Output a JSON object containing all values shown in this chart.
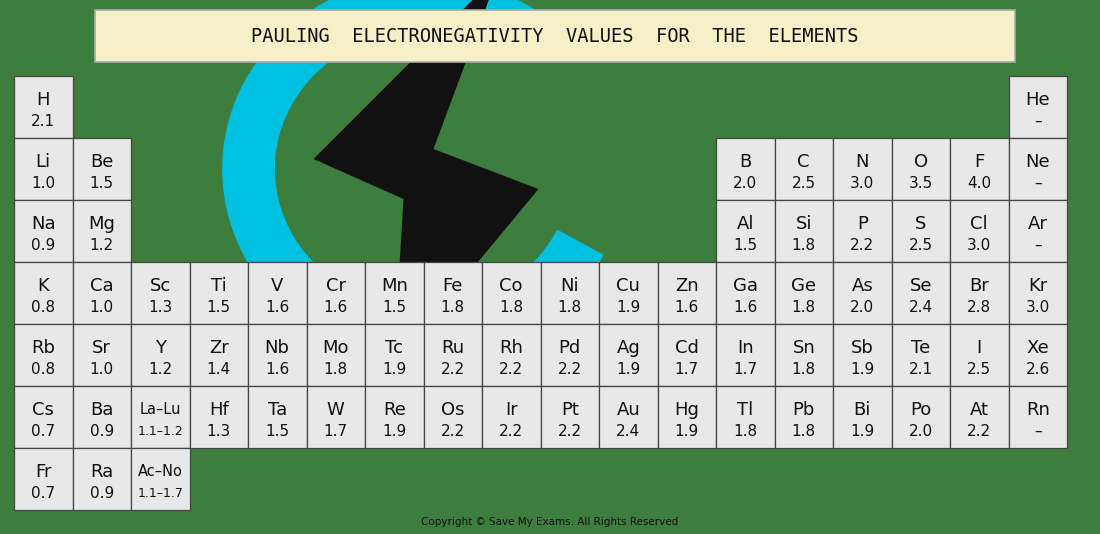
{
  "title": "PAULING  ELECTRONEGATIVITY  VALUES  FOR  THE  ELEMENTS",
  "title_bg": "#f5f0c8",
  "bg_color": "#3d7d3d",
  "cell_bg": "#e8e8e8",
  "cell_border": "#444444",
  "copyright": "Copyright © Save My Exams. All Rights Reserved",
  "cyan_color": "#00c0e0",
  "black_color": "#111111",
  "elements": [
    {
      "symbol": "H",
      "value": "2.1",
      "col": 0,
      "row": 0
    },
    {
      "symbol": "He",
      "value": "–",
      "col": 17,
      "row": 0
    },
    {
      "symbol": "Li",
      "value": "1.0",
      "col": 0,
      "row": 1
    },
    {
      "symbol": "Be",
      "value": "1.5",
      "col": 1,
      "row": 1
    },
    {
      "symbol": "B",
      "value": "2.0",
      "col": 12,
      "row": 1
    },
    {
      "symbol": "C",
      "value": "2.5",
      "col": 13,
      "row": 1
    },
    {
      "symbol": "N",
      "value": "3.0",
      "col": 14,
      "row": 1
    },
    {
      "symbol": "O",
      "value": "3.5",
      "col": 15,
      "row": 1
    },
    {
      "symbol": "F",
      "value": "4.0",
      "col": 16,
      "row": 1
    },
    {
      "symbol": "Ne",
      "value": "–",
      "col": 17,
      "row": 1
    },
    {
      "symbol": "Na",
      "value": "0.9",
      "col": 0,
      "row": 2
    },
    {
      "symbol": "Mg",
      "value": "1.2",
      "col": 1,
      "row": 2
    },
    {
      "symbol": "Al",
      "value": "1.5",
      "col": 12,
      "row": 2
    },
    {
      "symbol": "Si",
      "value": "1.8",
      "col": 13,
      "row": 2
    },
    {
      "symbol": "P",
      "value": "2.2",
      "col": 14,
      "row": 2
    },
    {
      "symbol": "S",
      "value": "2.5",
      "col": 15,
      "row": 2
    },
    {
      "symbol": "Cl",
      "value": "3.0",
      "col": 16,
      "row": 2
    },
    {
      "symbol": "Ar",
      "value": "–",
      "col": 17,
      "row": 2
    },
    {
      "symbol": "K",
      "value": "0.8",
      "col": 0,
      "row": 3
    },
    {
      "symbol": "Ca",
      "value": "1.0",
      "col": 1,
      "row": 3
    },
    {
      "symbol": "Sc",
      "value": "1.3",
      "col": 2,
      "row": 3
    },
    {
      "symbol": "Ti",
      "value": "1.5",
      "col": 3,
      "row": 3
    },
    {
      "symbol": "V",
      "value": "1.6",
      "col": 4,
      "row": 3
    },
    {
      "symbol": "Cr",
      "value": "1.6",
      "col": 5,
      "row": 3
    },
    {
      "symbol": "Mn",
      "value": "1.5",
      "col": 6,
      "row": 3
    },
    {
      "symbol": "Fe",
      "value": "1.8",
      "col": 7,
      "row": 3
    },
    {
      "symbol": "Co",
      "value": "1.8",
      "col": 8,
      "row": 3
    },
    {
      "symbol": "Ni",
      "value": "1.8",
      "col": 9,
      "row": 3
    },
    {
      "symbol": "Cu",
      "value": "1.9",
      "col": 10,
      "row": 3
    },
    {
      "symbol": "Zn",
      "value": "1.6",
      "col": 11,
      "row": 3
    },
    {
      "symbol": "Ga",
      "value": "1.6",
      "col": 12,
      "row": 3
    },
    {
      "symbol": "Ge",
      "value": "1.8",
      "col": 13,
      "row": 3
    },
    {
      "symbol": "As",
      "value": "2.0",
      "col": 14,
      "row": 3
    },
    {
      "symbol": "Se",
      "value": "2.4",
      "col": 15,
      "row": 3
    },
    {
      "symbol": "Br",
      "value": "2.8",
      "col": 16,
      "row": 3
    },
    {
      "symbol": "Kr",
      "value": "3.0",
      "col": 17,
      "row": 3
    },
    {
      "symbol": "Rb",
      "value": "0.8",
      "col": 0,
      "row": 4
    },
    {
      "symbol": "Sr",
      "value": "1.0",
      "col": 1,
      "row": 4
    },
    {
      "symbol": "Y",
      "value": "1.2",
      "col": 2,
      "row": 4
    },
    {
      "symbol": "Zr",
      "value": "1.4",
      "col": 3,
      "row": 4
    },
    {
      "symbol": "Nb",
      "value": "1.6",
      "col": 4,
      "row": 4
    },
    {
      "symbol": "Mo",
      "value": "1.8",
      "col": 5,
      "row": 4
    },
    {
      "symbol": "Tc",
      "value": "1.9",
      "col": 6,
      "row": 4
    },
    {
      "symbol": "Ru",
      "value": "2.2",
      "col": 7,
      "row": 4
    },
    {
      "symbol": "Rh",
      "value": "2.2",
      "col": 8,
      "row": 4
    },
    {
      "symbol": "Pd",
      "value": "2.2",
      "col": 9,
      "row": 4
    },
    {
      "symbol": "Ag",
      "value": "1.9",
      "col": 10,
      "row": 4
    },
    {
      "symbol": "Cd",
      "value": "1.7",
      "col": 11,
      "row": 4
    },
    {
      "symbol": "In",
      "value": "1.7",
      "col": 12,
      "row": 4
    },
    {
      "symbol": "Sn",
      "value": "1.8",
      "col": 13,
      "row": 4
    },
    {
      "symbol": "Sb",
      "value": "1.9",
      "col": 14,
      "row": 4
    },
    {
      "symbol": "Te",
      "value": "2.1",
      "col": 15,
      "row": 4
    },
    {
      "symbol": "I",
      "value": "2.5",
      "col": 16,
      "row": 4
    },
    {
      "symbol": "Xe",
      "value": "2.6",
      "col": 17,
      "row": 4
    },
    {
      "symbol": "Cs",
      "value": "0.7",
      "col": 0,
      "row": 5
    },
    {
      "symbol": "Ba",
      "value": "0.9",
      "col": 1,
      "row": 5
    },
    {
      "symbol": "La–Lu",
      "value": "1.1–1.2",
      "col": 2,
      "row": 5
    },
    {
      "symbol": "Hf",
      "value": "1.3",
      "col": 3,
      "row": 5
    },
    {
      "symbol": "Ta",
      "value": "1.5",
      "col": 4,
      "row": 5
    },
    {
      "symbol": "W",
      "value": "1.7",
      "col": 5,
      "row": 5
    },
    {
      "symbol": "Re",
      "value": "1.9",
      "col": 6,
      "row": 5
    },
    {
      "symbol": "Os",
      "value": "2.2",
      "col": 7,
      "row": 5
    },
    {
      "symbol": "Ir",
      "value": "2.2",
      "col": 8,
      "row": 5
    },
    {
      "symbol": "Pt",
      "value": "2.2",
      "col": 9,
      "row": 5
    },
    {
      "symbol": "Au",
      "value": "2.4",
      "col": 10,
      "row": 5
    },
    {
      "symbol": "Hg",
      "value": "1.9",
      "col": 11,
      "row": 5
    },
    {
      "symbol": "Tl",
      "value": "1.8",
      "col": 12,
      "row": 5
    },
    {
      "symbol": "Pb",
      "value": "1.8",
      "col": 13,
      "row": 5
    },
    {
      "symbol": "Bi",
      "value": "1.9",
      "col": 14,
      "row": 5
    },
    {
      "symbol": "Po",
      "value": "2.0",
      "col": 15,
      "row": 5
    },
    {
      "symbol": "At",
      "value": "2.2",
      "col": 16,
      "row": 5
    },
    {
      "symbol": "Rn",
      "value": "–",
      "col": 17,
      "row": 5
    },
    {
      "symbol": "Fr",
      "value": "0.7",
      "col": 0,
      "row": 6
    },
    {
      "symbol": "Ra",
      "value": "0.9",
      "col": 1,
      "row": 6
    },
    {
      "symbol": "Ac–No",
      "value": "1.1–1.7",
      "col": 2,
      "row": 6
    }
  ]
}
